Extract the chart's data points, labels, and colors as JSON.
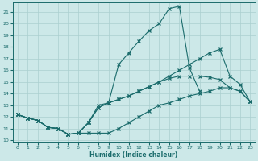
{
  "xlabel": "Humidex (Indice chaleur)",
  "bg_color": "#cce8e8",
  "grid_color": "#aacfcf",
  "line_color": "#1a6b6b",
  "xlim": [
    -0.5,
    23.5
  ],
  "ylim": [
    9.8,
    21.8
  ],
  "xticks": [
    0,
    1,
    2,
    3,
    4,
    5,
    6,
    7,
    8,
    9,
    10,
    11,
    12,
    13,
    14,
    15,
    16,
    17,
    18,
    19,
    20,
    21,
    22,
    23
  ],
  "yticks": [
    10,
    11,
    12,
    13,
    14,
    15,
    16,
    17,
    18,
    19,
    20,
    21
  ],
  "line_top_y": [
    12.2,
    11.9,
    11.7,
    11.1,
    11.0,
    10.5,
    10.6,
    11.5,
    13.0,
    13.2,
    16.5,
    17.5,
    18.5,
    19.4,
    20.0,
    21.3,
    21.5,
    16.2,
    14.2,
    null,
    null,
    null,
    null,
    null
  ],
  "line_mid1_y": [
    12.2,
    11.9,
    11.7,
    11.1,
    11.0,
    10.5,
    10.6,
    11.5,
    12.8,
    13.2,
    13.5,
    13.8,
    14.2,
    14.6,
    15.0,
    15.3,
    15.5,
    15.5,
    15.5,
    15.4,
    15.2,
    14.5,
    14.2,
    13.3
  ],
  "line_mid2_y": [
    12.2,
    11.9,
    11.7,
    11.1,
    11.0,
    10.5,
    10.6,
    11.5,
    12.8,
    13.2,
    13.5,
    13.8,
    14.2,
    14.6,
    15.0,
    15.5,
    16.0,
    16.5,
    17.0,
    17.5,
    17.8,
    15.5,
    14.8,
    13.3
  ],
  "line_bot_y": [
    12.2,
    11.9,
    11.7,
    11.1,
    11.0,
    10.5,
    10.6,
    10.6,
    10.6,
    10.6,
    11.0,
    11.5,
    12.0,
    12.5,
    13.0,
    13.2,
    13.5,
    13.8,
    14.0,
    14.2,
    14.5,
    14.5,
    14.2,
    13.3
  ]
}
